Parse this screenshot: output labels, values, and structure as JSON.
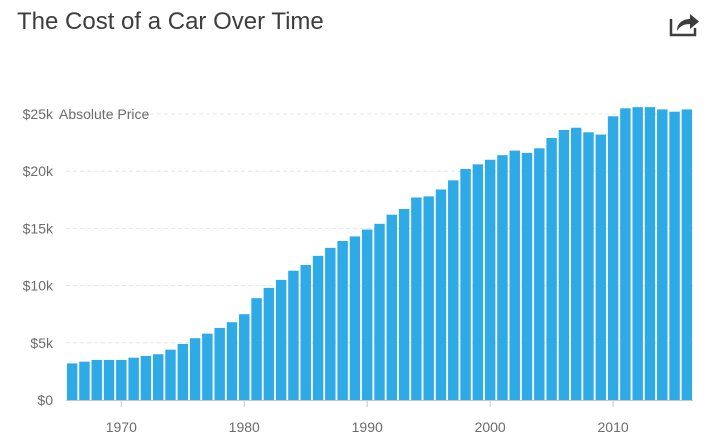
{
  "header": {
    "title": "The Cost of a Car Over Time",
    "share_icon": "share-arrow-icon"
  },
  "colors": {
    "bar": "#2eaae6",
    "grid": "#e6e6e6",
    "text": "#6b6b6b",
    "title": "#3d3d3d"
  },
  "chart_data": {
    "type": "bar",
    "title": "The Cost of a Car Over Time",
    "ylabel": "Absolute Price",
    "xlabel": "",
    "ylim": [
      0,
      25000
    ],
    "grid": true,
    "y_ticks": [
      {
        "value": 0,
        "label": "$0"
      },
      {
        "value": 5000,
        "label": "$5k"
      },
      {
        "value": 10000,
        "label": "$10k"
      },
      {
        "value": 15000,
        "label": "$15k"
      },
      {
        "value": 20000,
        "label": "$20k"
      },
      {
        "value": 25000,
        "label": "$25k"
      }
    ],
    "x_ticks": [
      {
        "value": 1970,
        "label": "1970"
      },
      {
        "value": 1980,
        "label": "1980"
      },
      {
        "value": 1990,
        "label": "1990"
      },
      {
        "value": 2000,
        "label": "2000"
      },
      {
        "value": 2010,
        "label": "2010"
      }
    ],
    "categories": [
      1966,
      1967,
      1968,
      1969,
      1970,
      1971,
      1972,
      1973,
      1974,
      1975,
      1976,
      1977,
      1978,
      1979,
      1980,
      1981,
      1982,
      1983,
      1984,
      1985,
      1986,
      1987,
      1988,
      1989,
      1990,
      1991,
      1992,
      1993,
      1994,
      1995,
      1996,
      1997,
      1998,
      1999,
      2000,
      2001,
      2002,
      2003,
      2004,
      2005,
      2006,
      2007,
      2008,
      2009,
      2010,
      2011,
      2012,
      2013,
      2014,
      2015,
      2016
    ],
    "values": [
      3200,
      3350,
      3500,
      3500,
      3500,
      3700,
      3850,
      4000,
      4400,
      4900,
      5400,
      5800,
      6300,
      6800,
      7500,
      8900,
      9800,
      10500,
      11300,
      11800,
      12600,
      13300,
      13900,
      14300,
      14900,
      15400,
      16200,
      16700,
      17700,
      17800,
      18400,
      19200,
      20200,
      20600,
      21000,
      21400,
      21800,
      21600,
      22000,
      22900,
      23600,
      23800,
      23400,
      23200,
      24800,
      25500,
      25600,
      25600,
      25400,
      25200,
      25400
    ]
  }
}
